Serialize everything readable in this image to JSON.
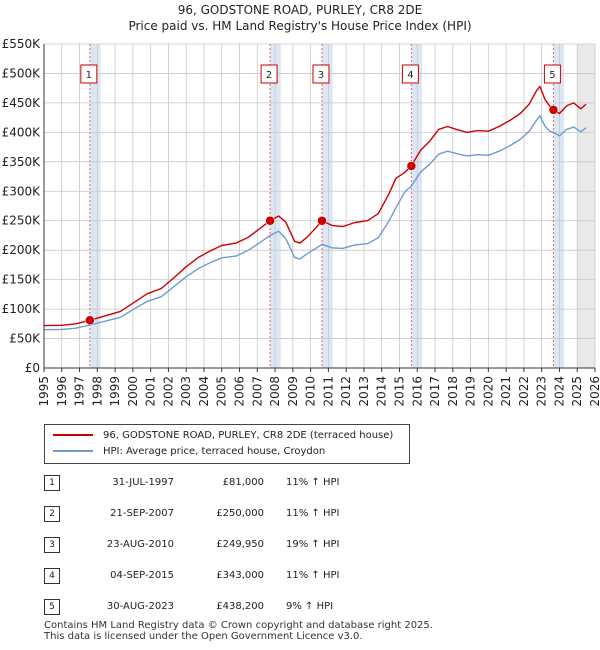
{
  "chart_data": {
    "type": "line",
    "title": "96, GODSTONE ROAD, PURLEY, CR8 2DE",
    "subtitle": "Price paid vs. HM Land Registry's House Price Index (HPI)",
    "xlim": [
      1995,
      2026
    ],
    "ylim": [
      0,
      550000
    ],
    "x_ticks": [
      1995,
      1996,
      1997,
      1998,
      1999,
      2000,
      2001,
      2002,
      2003,
      2004,
      2005,
      2006,
      2007,
      2008,
      2009,
      2010,
      2011,
      2012,
      2013,
      2014,
      2015,
      2016,
      2017,
      2018,
      2019,
      2020,
      2021,
      2022,
      2023,
      2024,
      2025,
      2026
    ],
    "y_ticks": [
      {
        "value": 0,
        "label": "£0"
      },
      {
        "value": 50000,
        "label": "£50K"
      },
      {
        "value": 100000,
        "label": "£100K"
      },
      {
        "value": 150000,
        "label": "£150K"
      },
      {
        "value": 200000,
        "label": "£200K"
      },
      {
        "value": 250000,
        "label": "£250K"
      },
      {
        "value": 300000,
        "label": "£300K"
      },
      {
        "value": 350000,
        "label": "£350K"
      },
      {
        "value": 400000,
        "label": "£400K"
      },
      {
        "value": 450000,
        "label": "£450K"
      },
      {
        "value": 500000,
        "label": "£500K"
      },
      {
        "value": 550000,
        "label": "£550K"
      }
    ],
    "grid": true,
    "series": [
      {
        "name": "96, GODSTONE ROAD, PURLEY, CR8 2DE (terraced house)",
        "color": "#cc0000",
        "points": [
          [
            1995.0,
            72000
          ],
          [
            1996.0,
            72500
          ],
          [
            1996.8,
            75000
          ],
          [
            1997.58,
            81000
          ],
          [
            1998.5,
            89000
          ],
          [
            1999.3,
            96000
          ],
          [
            2000.0,
            110000
          ],
          [
            2000.8,
            126000
          ],
          [
            2001.6,
            135000
          ],
          [
            2002.3,
            153000
          ],
          [
            2003.0,
            172000
          ],
          [
            2003.7,
            188000
          ],
          [
            2004.3,
            198000
          ],
          [
            2005.0,
            208000
          ],
          [
            2005.8,
            212000
          ],
          [
            2006.5,
            222000
          ],
          [
            2007.2,
            238000
          ],
          [
            2007.72,
            250000
          ],
          [
            2008.2,
            258000
          ],
          [
            2008.6,
            248000
          ],
          [
            2009.1,
            215000
          ],
          [
            2009.4,
            212000
          ],
          [
            2009.8,
            222000
          ],
          [
            2010.3,
            238000
          ],
          [
            2010.64,
            249950
          ],
          [
            2011.2,
            242000
          ],
          [
            2011.8,
            240000
          ],
          [
            2012.5,
            247000
          ],
          [
            2013.2,
            250000
          ],
          [
            2013.8,
            262000
          ],
          [
            2014.4,
            295000
          ],
          [
            2014.8,
            322000
          ],
          [
            2015.3,
            332000
          ],
          [
            2015.67,
            343000
          ],
          [
            2015.8,
            350000
          ],
          [
            2016.2,
            370000
          ],
          [
            2016.7,
            385000
          ],
          [
            2017.2,
            405000
          ],
          [
            2017.7,
            410000
          ],
          [
            2018.2,
            405000
          ],
          [
            2018.8,
            400000
          ],
          [
            2019.4,
            403000
          ],
          [
            2020.0,
            402000
          ],
          [
            2020.6,
            410000
          ],
          [
            2021.2,
            420000
          ],
          [
            2021.8,
            432000
          ],
          [
            2022.3,
            448000
          ],
          [
            2022.7,
            470000
          ],
          [
            2022.9,
            478000
          ],
          [
            2023.2,
            455000
          ],
          [
            2023.45,
            445000
          ],
          [
            2023.66,
            438200
          ],
          [
            2024.0,
            432000
          ],
          [
            2024.4,
            445000
          ],
          [
            2024.8,
            450000
          ],
          [
            2025.2,
            440000
          ],
          [
            2025.5,
            448000
          ]
        ]
      },
      {
        "name": "HPI: Average price, terraced house, Croydon",
        "color": "#6f9ad4",
        "points": [
          [
            1995.0,
            65000
          ],
          [
            1996.0,
            65500
          ],
          [
            1996.8,
            67500
          ],
          [
            1997.58,
            73000
          ],
          [
            1998.5,
            80000
          ],
          [
            1999.3,
            86000
          ],
          [
            2000.0,
            99000
          ],
          [
            2000.8,
            113000
          ],
          [
            2001.6,
            121000
          ],
          [
            2002.3,
            138000
          ],
          [
            2003.0,
            155000
          ],
          [
            2003.7,
            169000
          ],
          [
            2004.3,
            178000
          ],
          [
            2005.0,
            187000
          ],
          [
            2005.8,
            190000
          ],
          [
            2006.5,
            200000
          ],
          [
            2007.2,
            214000
          ],
          [
            2007.72,
            225000
          ],
          [
            2008.2,
            232000
          ],
          [
            2008.6,
            220000
          ],
          [
            2009.1,
            188000
          ],
          [
            2009.4,
            185000
          ],
          [
            2009.8,
            194000
          ],
          [
            2010.3,
            203000
          ],
          [
            2010.64,
            210000
          ],
          [
            2011.2,
            204000
          ],
          [
            2011.8,
            203000
          ],
          [
            2012.5,
            209000
          ],
          [
            2013.2,
            211000
          ],
          [
            2013.8,
            221000
          ],
          [
            2014.4,
            249000
          ],
          [
            2014.8,
            272000
          ],
          [
            2015.3,
            299000
          ],
          [
            2015.67,
            309000
          ],
          [
            2015.8,
            315000
          ],
          [
            2016.2,
            333000
          ],
          [
            2016.7,
            346000
          ],
          [
            2017.2,
            363000
          ],
          [
            2017.7,
            368000
          ],
          [
            2018.2,
            364000
          ],
          [
            2018.8,
            360000
          ],
          [
            2019.4,
            362000
          ],
          [
            2020.0,
            361000
          ],
          [
            2020.6,
            368000
          ],
          [
            2021.2,
            377000
          ],
          [
            2021.8,
            388000
          ],
          [
            2022.3,
            402000
          ],
          [
            2022.7,
            420000
          ],
          [
            2022.9,
            428000
          ],
          [
            2023.2,
            410000
          ],
          [
            2023.45,
            402000
          ],
          [
            2023.66,
            400000
          ],
          [
            2024.0,
            394000
          ],
          [
            2024.4,
            405000
          ],
          [
            2024.8,
            409000
          ],
          [
            2025.2,
            401000
          ],
          [
            2025.5,
            408000
          ]
        ]
      }
    ],
    "sales": [
      {
        "num": "1",
        "x": 1997.58,
        "y": 81000,
        "date": "31-JUL-1997",
        "price": "£81,000",
        "hpi": "11% ↑ HPI"
      },
      {
        "num": "2",
        "x": 2007.72,
        "y": 250000,
        "date": "21-SEP-2007",
        "price": "£250,000",
        "hpi": "11% ↑ HPI"
      },
      {
        "num": "3",
        "x": 2010.64,
        "y": 249950,
        "date": "23-AUG-2010",
        "price": "£249,950",
        "hpi": "19% ↑ HPI"
      },
      {
        "num": "4",
        "x": 2015.67,
        "y": 343000,
        "date": "04-SEP-2015",
        "price": "£343,000",
        "hpi": "11% ↑ HPI"
      },
      {
        "num": "5",
        "x": 2023.66,
        "y": 438200,
        "date": "30-AUG-2023",
        "price": "£438,200",
        "hpi": "9% ↑ HPI"
      }
    ],
    "projection_shade_from": 2025.0,
    "colors": {
      "sale_band": "#dde6f4",
      "projection": "#e9e9e9",
      "sale_line": "#ee6666",
      "grid": "#c8c8c8"
    }
  },
  "legend": {
    "property_label": "96, GODSTONE ROAD, PURLEY, CR8 2DE (terraced house)",
    "hpi_label": "HPI: Average price, terraced house, Croydon"
  },
  "footer": {
    "line1": "Contains HM Land Registry data © Crown copyright and database right 2025.",
    "line2": "This data is licensed under the Open Government Licence v3.0."
  }
}
